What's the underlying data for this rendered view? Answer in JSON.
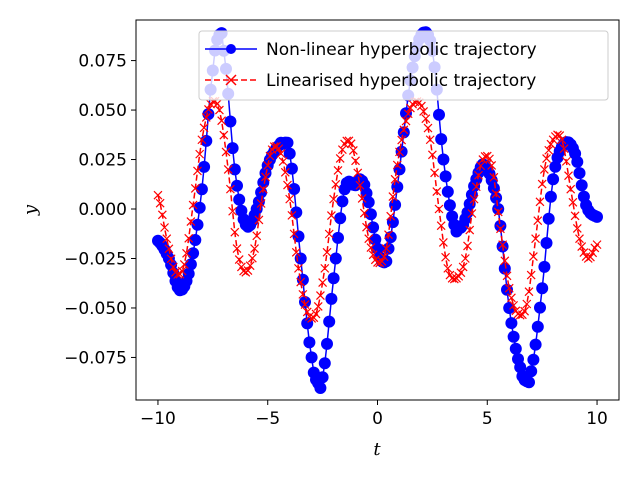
{
  "chart_data": {
    "type": "line",
    "title": "",
    "xlabel": "t",
    "ylabel": "y",
    "xlim": [
      -11.0,
      11.0
    ],
    "ylim": [
      -0.0965,
      0.0955
    ],
    "xticks": [
      -10,
      -5,
      0,
      5,
      10
    ],
    "xtick_labels": [
      "−10",
      "−5",
      "0",
      "5",
      "10"
    ],
    "yticks": [
      -0.075,
      -0.05,
      -0.025,
      0.0,
      0.025,
      0.05,
      0.075
    ],
    "ytick_labels": [
      "−0.075",
      "−0.050",
      "−0.025",
      "0.000",
      "0.025",
      "0.050",
      "0.075"
    ],
    "grid": false,
    "legend_position": "top-right",
    "series": [
      {
        "name": "Non-linear hyperbolic trajectory",
        "color": "#0000ff",
        "marker": "circle",
        "linestyle": "solid",
        "x": [
          -10,
          -9.5,
          -9,
          -8.5,
          -8,
          -7.5,
          -7.2,
          -7,
          -6.5,
          -6,
          -5.5,
          -5,
          -4.5,
          -4.3,
          -4,
          -3.5,
          -3,
          -2.7,
          -2.5,
          -2,
          -1.5,
          -1,
          -0.8,
          -0.5,
          0,
          0.3,
          0.5,
          1,
          1.5,
          2,
          2.5,
          3,
          3.5,
          3.7,
          4,
          4.5,
          4.9,
          5.5,
          6,
          6.5,
          6.8,
          7,
          7.5,
          8,
          8.5,
          9,
          9.5,
          10
        ],
        "y": [
          -0.016,
          -0.025,
          -0.041,
          -0.028,
          0.01,
          0.07,
          0.088,
          0.08,
          0.02,
          -0.008,
          0.0,
          0.022,
          0.032,
          0.033,
          0.028,
          -0.025,
          -0.075,
          -0.088,
          -0.085,
          -0.035,
          0.01,
          0.012,
          0.015,
          0.008,
          -0.02,
          -0.027,
          -0.02,
          0.02,
          0.065,
          0.088,
          0.08,
          0.025,
          -0.008,
          -0.01,
          -0.005,
          0.015,
          0.022,
          0.0,
          -0.05,
          -0.08,
          -0.087,
          -0.082,
          -0.04,
          0.015,
          0.033,
          0.028,
          0.002,
          -0.004
        ]
      },
      {
        "name": "Linearised hyperbolic trajectory",
        "color": "#ff0000",
        "marker": "x",
        "linestyle": "dashed",
        "x": [
          -10,
          -9.6,
          -9.2,
          -8.8,
          -8.4,
          -8,
          -7.6,
          -7.2,
          -6.8,
          -6.4,
          -6,
          -5.6,
          -5.2,
          -4.8,
          -4.4,
          -4,
          -3.6,
          -3.2,
          -2.8,
          -2.4,
          -2,
          -1.6,
          -1.2,
          -0.8,
          -0.4,
          0,
          0.4,
          0.8,
          1.2,
          1.6,
          2,
          2.4,
          2.8,
          3.2,
          3.6,
          4,
          4.4,
          4.8,
          5.2,
          5.6,
          6,
          6.4,
          6.8,
          7.2,
          7.6,
          8,
          8.4,
          8.8,
          9.2,
          9.6,
          10
        ],
        "y": [
          0.007,
          -0.015,
          -0.032,
          -0.028,
          0.002,
          0.035,
          0.053,
          0.05,
          0.02,
          -0.02,
          -0.032,
          -0.02,
          0.01,
          0.03,
          0.028,
          0.005,
          -0.03,
          -0.052,
          -0.053,
          -0.03,
          0.005,
          0.03,
          0.033,
          0.012,
          -0.015,
          -0.027,
          -0.02,
          0.015,
          0.04,
          0.053,
          0.052,
          0.035,
          0.0,
          -0.03,
          -0.035,
          -0.025,
          0.005,
          0.025,
          0.022,
          -0.01,
          -0.04,
          -0.053,
          -0.048,
          -0.015,
          0.02,
          0.035,
          0.035,
          0.01,
          -0.015,
          -0.025,
          -0.018
        ]
      }
    ]
  }
}
